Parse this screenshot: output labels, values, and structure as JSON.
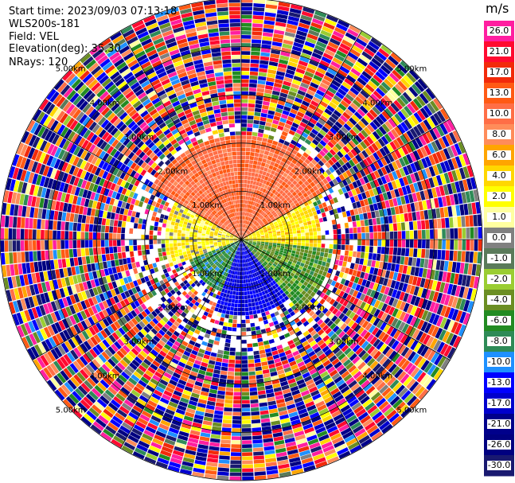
{
  "info": {
    "start_time": "Start time: 2023/09/03 07:13:18",
    "site": "WLS200s-181",
    "field": "Field: VEL",
    "elevation": "Elevation(deg): 35.30",
    "nrays": "NRays: 120"
  },
  "colorbar": {
    "unit": "m/s",
    "bands": [
      {
        "label": "26.0",
        "color": "#ff1ea0"
      },
      {
        "label": "21.0",
        "color": "#ff0a30"
      },
      {
        "label": "17.0",
        "color": "#f22a0a"
      },
      {
        "label": "13.0",
        "color": "#ff5a14"
      },
      {
        "label": "10.0",
        "color": "#ff6e46"
      },
      {
        "label": "8.0",
        "color": "#ff8c5a"
      },
      {
        "label": "6.0",
        "color": "#ffa500"
      },
      {
        "label": "4.0",
        "color": "#ffd700"
      },
      {
        "label": "2.0",
        "color": "#ffff00"
      },
      {
        "label": "1.0",
        "color": "#ffffa0"
      },
      {
        "label": "0.0",
        "color": "#808080"
      },
      {
        "label": "-1.0",
        "color": "#5a7a5a"
      },
      {
        "label": "-2.0",
        "color": "#9acd32"
      },
      {
        "label": "-4.0",
        "color": "#6b8e23"
      },
      {
        "label": "-6.0",
        "color": "#228b22"
      },
      {
        "label": "-8.0",
        "color": "#2e8b57"
      },
      {
        "label": "-10.0",
        "color": "#1e90ff"
      },
      {
        "label": "-13.0",
        "color": "#0000ff"
      },
      {
        "label": "-17.0",
        "color": "#0000cd"
      },
      {
        "label": "-21.0",
        "color": "#00008b"
      },
      {
        "label": "-26.0",
        "color": "#000080"
      },
      {
        "label": "-30.0",
        "color": "#191970"
      }
    ]
  },
  "chart_data": {
    "type": "heatmap",
    "projection": "polar",
    "field": "VEL",
    "nrays": 120,
    "range_rings_km": [
      1,
      2,
      3,
      4,
      5
    ],
    "ring_labels": [
      "1.00km",
      "2.00km",
      "3.00km",
      "4.00km",
      "5.00km"
    ],
    "azimuth_lines_deg": [
      0,
      30,
      60,
      90,
      120,
      150,
      180,
      210,
      240,
      270,
      300,
      330
    ],
    "max_range_km": 5.0,
    "inner_pattern": [
      {
        "azimuth_from": 300,
        "azimuth_to": 60,
        "range_km_max": 2.2,
        "velocity_ms": 12
      },
      {
        "azimuth_from": 250,
        "azimuth_to": 300,
        "range_km_max": 1.6,
        "velocity_ms": 3
      },
      {
        "azimuth_from": 60,
        "azimuth_to": 95,
        "range_km_max": 1.7,
        "velocity_ms": 4
      },
      {
        "azimuth_from": 95,
        "azimuth_to": 140,
        "range_km_max": 1.9,
        "velocity_ms": -4
      },
      {
        "azimuth_from": 140,
        "azimuth_to": 200,
        "range_km_max": 1.6,
        "velocity_ms": -13
      },
      {
        "azimuth_from": 200,
        "azimuth_to": 250,
        "range_km_max": 1.2,
        "velocity_ms": -6
      }
    ]
  }
}
